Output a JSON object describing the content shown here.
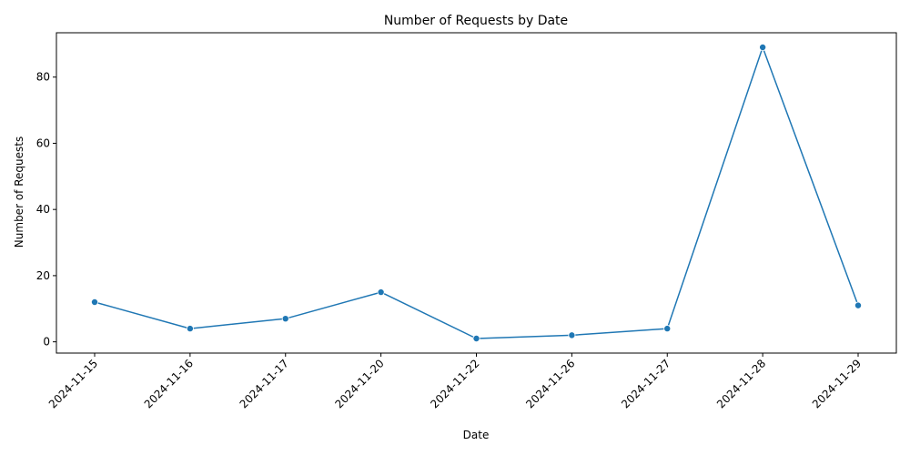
{
  "chart_data": {
    "type": "line",
    "title": "Number of Requests by Date",
    "xlabel": "Date",
    "ylabel": "Number of Requests",
    "categories": [
      "2024-11-15",
      "2024-11-16",
      "2024-11-17",
      "2024-11-20",
      "2024-11-22",
      "2024-11-26",
      "2024-11-27",
      "2024-11-28",
      "2024-11-29"
    ],
    "series": [
      {
        "values": [
          12,
          4,
          7,
          15,
          1,
          2,
          4,
          89,
          11
        ],
        "color": "#1f77b4",
        "marker": "circle"
      }
    ],
    "ylim": [
      -3.4,
      93.4
    ],
    "yticks": [
      0,
      20,
      40,
      60,
      80
    ],
    "grid": false,
    "legend": "none",
    "xtick_rotation": 45
  }
}
